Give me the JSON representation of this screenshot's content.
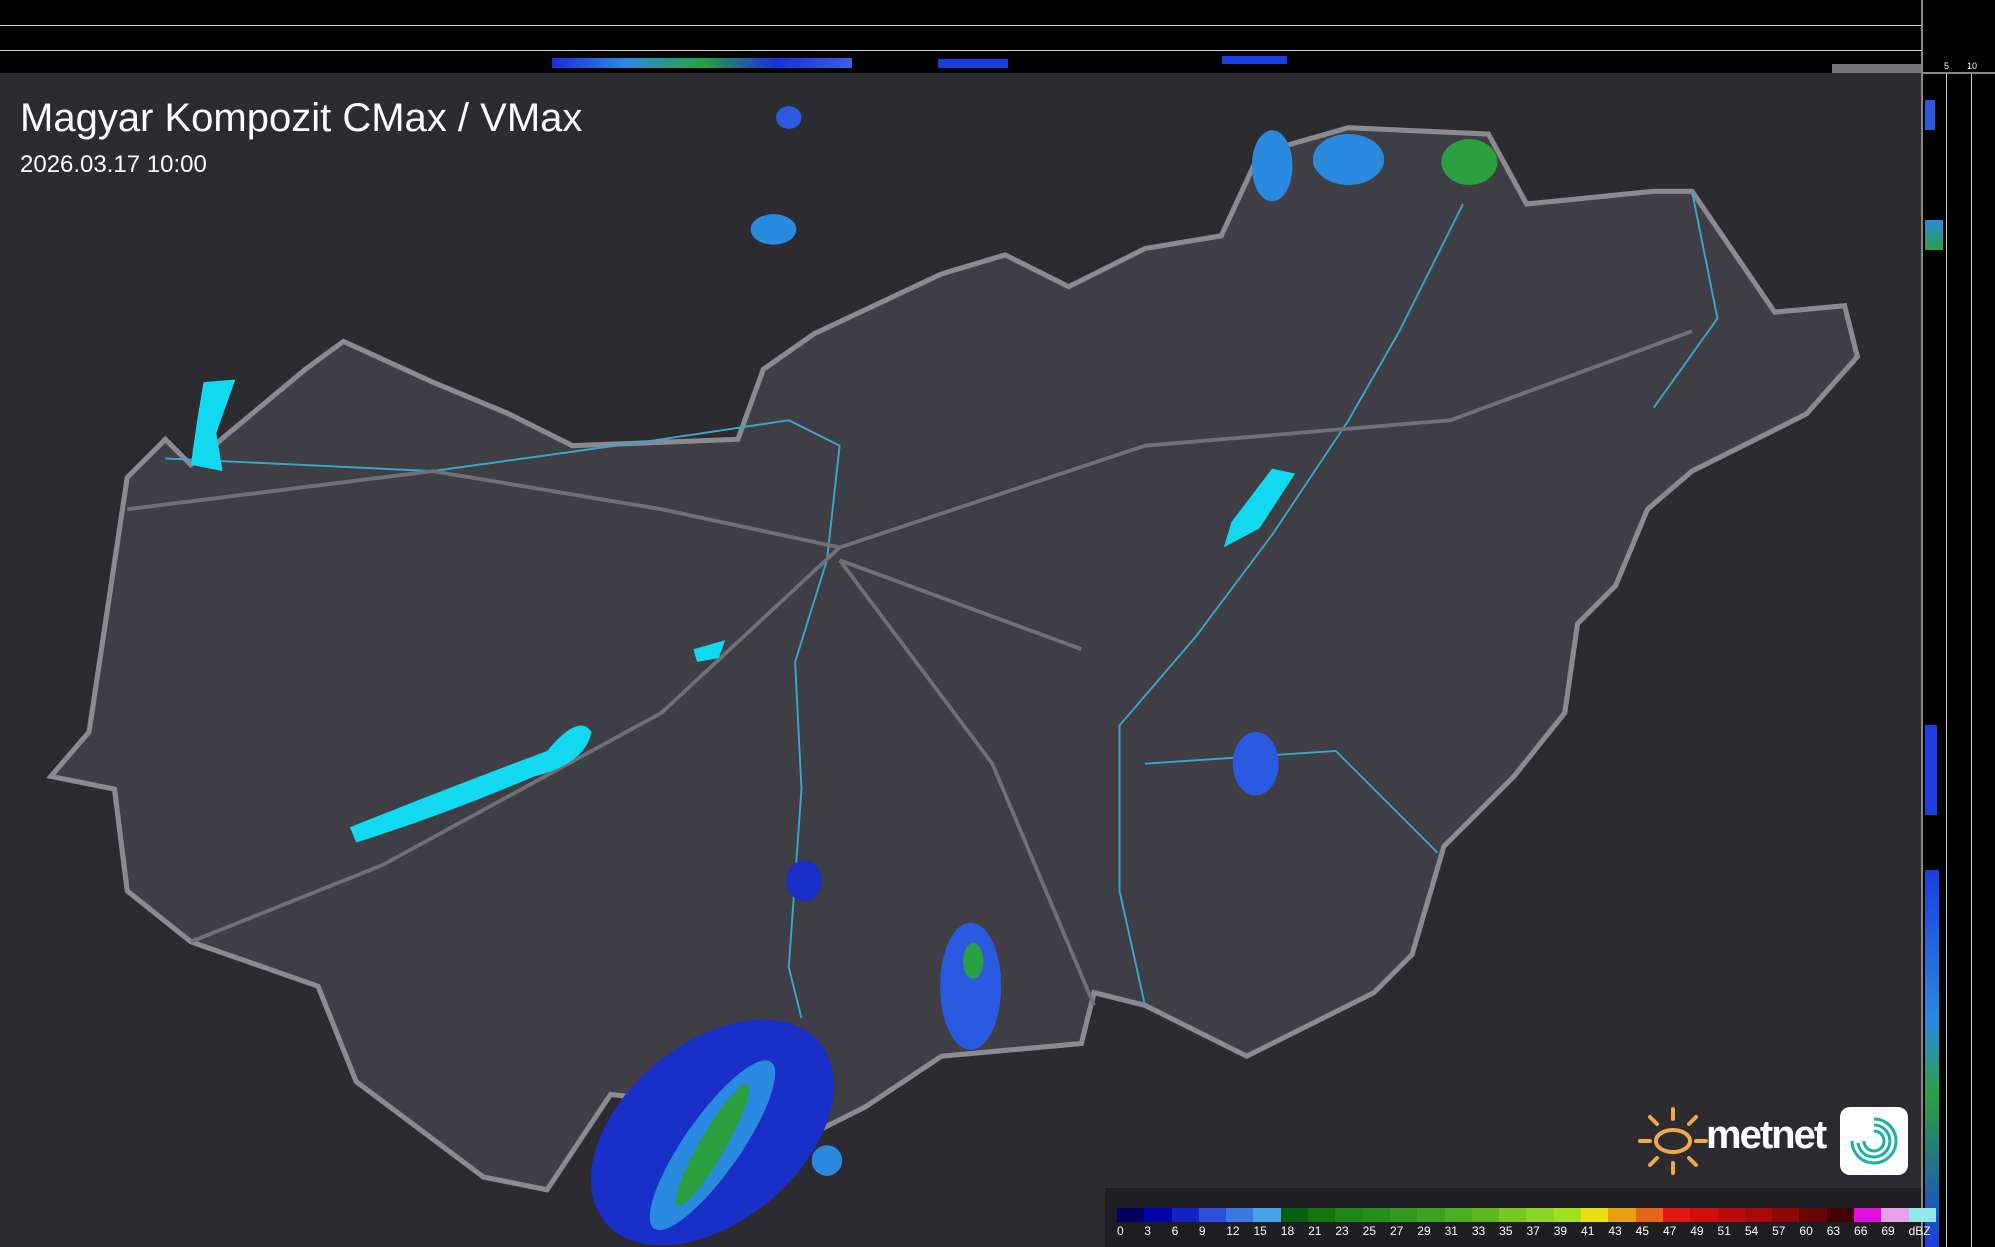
{
  "header": {
    "title": "Magyar Kompozit CMax / VMax",
    "timestamp": "2026.03.17 10:00"
  },
  "profile_axes": {
    "top_ticks": [
      "10",
      "5"
    ],
    "right_ticks": [
      "5",
      "10"
    ]
  },
  "legend": {
    "unit": "dBZ",
    "labels": [
      "0",
      "3",
      "6",
      "9",
      "12",
      "15",
      "18",
      "21",
      "23",
      "25",
      "27",
      "29",
      "31",
      "33",
      "35",
      "37",
      "39",
      "41",
      "43",
      "45",
      "47",
      "49",
      "51",
      "54",
      "57",
      "60",
      "63",
      "66",
      "69"
    ],
    "colors": [
      "#00005e",
      "#0000a8",
      "#1424c4",
      "#2d50d8",
      "#3a78e0",
      "#44a4ea",
      "#0a5e10",
      "#157412",
      "#1c8618",
      "#248e1a",
      "#309a1c",
      "#3ca41e",
      "#4cae20",
      "#5eb822",
      "#78c624",
      "#8cd42a",
      "#a0e020",
      "#e8e010",
      "#e8a010",
      "#e06818",
      "#e01818",
      "#cc1010",
      "#b80c0c",
      "#a40a0a",
      "#8c0808",
      "#660404",
      "#3e0202",
      "#e010e0",
      "#e8a0e8"
    ],
    "last_color": "#90e8e8"
  },
  "colors": {
    "background": "#2b2b30",
    "country": "#3e3e44",
    "border": "#8a8a90",
    "rivers": "#3aa6c8",
    "lakes": "#12d8f0"
  },
  "logo": {
    "text": "metnet"
  }
}
